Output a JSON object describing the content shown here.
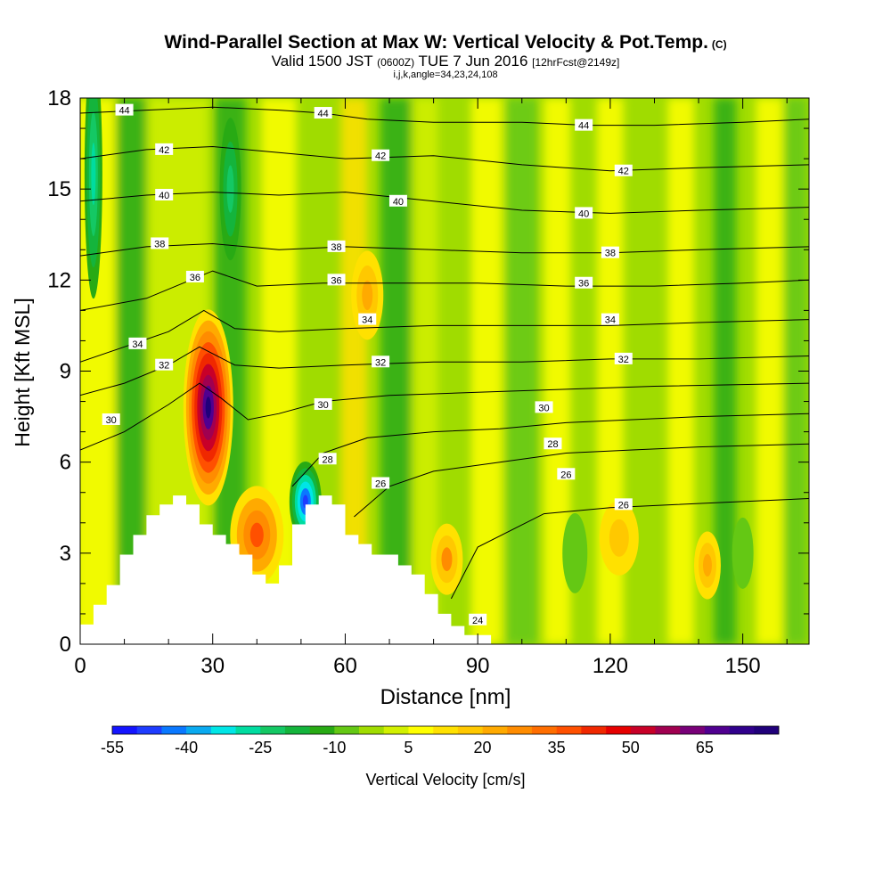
{
  "titles": {
    "title": "Wind-Parallel Section at Max W: Vertical Velocity & Pot.Temp.",
    "title_mark": "(C)",
    "valid_a": "Valid 1500 JST ",
    "valid_b": "(0600Z)",
    "valid_c": " TUE 7 Jun 2016 ",
    "valid_d": "[12hrFcst@2149z]",
    "indices": "i,j,k,angle=34,23,24,108"
  },
  "chart_data": {
    "type": "heatmap",
    "xlabel": "Distance [nm]",
    "ylabel": "Height [Kft MSL]",
    "xlim": [
      0,
      165
    ],
    "ylim": [
      0,
      18
    ],
    "x_ticks": [
      "0",
      "30",
      "60",
      "90",
      "120",
      "150"
    ],
    "y_ticks": [
      "0",
      "3",
      "6",
      "9",
      "12",
      "15",
      "18"
    ],
    "x_tick_values": [
      0,
      30,
      60,
      90,
      120,
      150
    ],
    "y_tick_values": [
      0,
      3,
      6,
      9,
      12,
      15,
      18
    ],
    "colorbar": {
      "label": "Vertical Velocity [cm/s]",
      "min": -55,
      "max": 80,
      "step": 5,
      "tick_labels": [
        "-55",
        "-40",
        "-25",
        "-10",
        "5",
        "20",
        "35",
        "50",
        "65"
      ],
      "tick_values": [
        -55,
        -40,
        -25,
        -10,
        5,
        20,
        35,
        50,
        65
      ],
      "colors": [
        "#1414ff",
        "#1e3cff",
        "#0a78ff",
        "#0aaaf0",
        "#00e6e6",
        "#00dca0",
        "#14c864",
        "#14b43c",
        "#28aa14",
        "#64c814",
        "#a0dc00",
        "#d2f000",
        "#ffff00",
        "#ffe100",
        "#ffc800",
        "#ffaa00",
        "#ff8c00",
        "#ff6e00",
        "#ff5000",
        "#f02800",
        "#e60000",
        "#c80028",
        "#a00050",
        "#780078",
        "#500090",
        "#30008c",
        "#20007a"
      ]
    },
    "terrain": {
      "x": [
        0,
        3,
        3,
        6,
        6,
        9,
        9,
        12,
        12,
        15,
        15,
        18,
        18,
        21,
        21,
        24,
        24,
        27,
        27,
        30,
        30,
        33,
        33,
        36,
        36,
        39,
        39,
        42,
        42,
        45,
        45,
        48,
        48,
        51,
        51,
        54,
        54,
        57,
        57,
        60,
        60,
        63,
        63,
        66,
        66,
        72,
        72,
        75,
        75,
        78,
        78,
        81,
        81,
        84,
        84,
        87,
        87,
        93,
        93,
        165
      ],
      "y": [
        0.65,
        0.65,
        1.3,
        1.3,
        1.95,
        1.95,
        2.95,
        2.95,
        3.6,
        3.6,
        4.25,
        4.25,
        4.6,
        4.6,
        4.9,
        4.9,
        4.6,
        4.6,
        3.95,
        3.95,
        3.6,
        3.6,
        3.3,
        3.3,
        2.95,
        2.95,
        2.3,
        2.3,
        2.0,
        2.0,
        2.6,
        2.6,
        3.95,
        3.95,
        4.6,
        4.6,
        4.9,
        4.9,
        4.6,
        4.6,
        3.6,
        3.6,
        3.3,
        3.3,
        2.95,
        2.95,
        2.6,
        2.6,
        2.3,
        2.3,
        1.65,
        1.65,
        1.0,
        1.0,
        0.6,
        0.6,
        0.3,
        0.3,
        0.0,
        0.0
      ]
    },
    "updraft_cores": [
      {
        "x": 29,
        "y": 7.8,
        "value": 75
      },
      {
        "x": 40,
        "y": 3.6,
        "value": 35
      },
      {
        "x": 65,
        "y": 11.5,
        "value": 20
      },
      {
        "x": 83,
        "y": 2.8,
        "value": 25
      },
      {
        "x": 122,
        "y": 3.5,
        "value": 18
      },
      {
        "x": 142,
        "y": 2.6,
        "value": 22
      }
    ],
    "downdraft_cores": [
      {
        "x": 51,
        "y": 4.7,
        "value": -50
      },
      {
        "x": 3,
        "y": 15.5,
        "value": -30
      },
      {
        "x": 34,
        "y": 15.0,
        "value": -25
      },
      {
        "x": 112,
        "y": 3.0,
        "value": -10
      },
      {
        "x": 150,
        "y": 3.0,
        "value": -10
      }
    ],
    "isentropes": [
      {
        "level": "24",
        "x": [
          84,
          90,
          105,
          120,
          135,
          150,
          165
        ],
        "y": [
          1.5,
          3.2,
          4.3,
          4.5,
          4.6,
          4.7,
          4.8
        ]
      },
      {
        "level": "26",
        "x": [
          62,
          70,
          80,
          95,
          110,
          125,
          140,
          165
        ],
        "y": [
          4.2,
          5.2,
          5.7,
          6.0,
          6.3,
          6.4,
          6.5,
          6.6
        ]
      },
      {
        "level": "28",
        "x": [
          48,
          55,
          65,
          80,
          95,
          110,
          125,
          140,
          165
        ],
        "y": [
          5.2,
          6.3,
          6.8,
          7.0,
          7.1,
          7.3,
          7.4,
          7.5,
          7.6
        ]
      },
      {
        "level": "30",
        "x": [
          0,
          10,
          20,
          27,
          32,
          38,
          45,
          55,
          70,
          90,
          110,
          130,
          165
        ],
        "y": [
          6.4,
          7.0,
          7.9,
          8.6,
          8.1,
          7.4,
          7.6,
          8.0,
          8.2,
          8.3,
          8.4,
          8.5,
          8.6
        ]
      },
      {
        "level": "32",
        "x": [
          0,
          10,
          20,
          27,
          35,
          45,
          60,
          80,
          100,
          120,
          140,
          165
        ],
        "y": [
          8.2,
          8.6,
          9.2,
          9.8,
          9.2,
          9.1,
          9.2,
          9.3,
          9.3,
          9.4,
          9.4,
          9.5
        ]
      },
      {
        "level": "34",
        "x": [
          0,
          10,
          20,
          28,
          35,
          45,
          60,
          80,
          100,
          120,
          140,
          165
        ],
        "y": [
          9.3,
          9.8,
          10.3,
          11.0,
          10.4,
          10.3,
          10.4,
          10.5,
          10.5,
          10.5,
          10.6,
          10.7
        ]
      },
      {
        "level": "36",
        "x": [
          0,
          15,
          25,
          30,
          40,
          55,
          70,
          90,
          110,
          130,
          150,
          165
        ],
        "y": [
          11.0,
          11.4,
          12.0,
          12.3,
          11.8,
          11.9,
          11.9,
          11.9,
          11.8,
          11.8,
          11.9,
          12.0
        ]
      },
      {
        "level": "38",
        "x": [
          0,
          15,
          30,
          45,
          60,
          80,
          100,
          120,
          140,
          165
        ],
        "y": [
          12.8,
          13.1,
          13.2,
          13.0,
          13.1,
          13.0,
          12.9,
          12.9,
          13.0,
          13.1
        ]
      },
      {
        "level": "40",
        "x": [
          0,
          15,
          30,
          45,
          60,
          80,
          100,
          120,
          140,
          165
        ],
        "y": [
          14.6,
          14.8,
          14.9,
          14.8,
          14.9,
          14.6,
          14.3,
          14.2,
          14.3,
          14.4
        ]
      },
      {
        "level": "42",
        "x": [
          0,
          15,
          30,
          45,
          60,
          80,
          100,
          120,
          140,
          165
        ],
        "y": [
          16.0,
          16.3,
          16.4,
          16.2,
          16.0,
          16.1,
          15.8,
          15.6,
          15.7,
          15.8
        ]
      },
      {
        "level": "44",
        "x": [
          0,
          15,
          30,
          45,
          55,
          65,
          80,
          100,
          115,
          130,
          150,
          165
        ],
        "y": [
          17.5,
          17.6,
          17.7,
          17.6,
          17.5,
          17.3,
          17.2,
          17.2,
          17.1,
          17.1,
          17.2,
          17.3
        ]
      }
    ],
    "isentrope_labels": [
      {
        "text": "44",
        "x": 10,
        "y": 17.6
      },
      {
        "text": "44",
        "x": 55,
        "y": 17.5
      },
      {
        "text": "44",
        "x": 114,
        "y": 17.1
      },
      {
        "text": "42",
        "x": 19,
        "y": 16.3
      },
      {
        "text": "42",
        "x": 68,
        "y": 16.1
      },
      {
        "text": "42",
        "x": 123,
        "y": 15.6
      },
      {
        "text": "40",
        "x": 19,
        "y": 14.8
      },
      {
        "text": "40",
        "x": 72,
        "y": 14.6
      },
      {
        "text": "40",
        "x": 114,
        "y": 14.2
      },
      {
        "text": "38",
        "x": 18,
        "y": 13.2
      },
      {
        "text": "38",
        "x": 58,
        "y": 13.1
      },
      {
        "text": "38",
        "x": 120,
        "y": 12.9
      },
      {
        "text": "36",
        "x": 26,
        "y": 12.1
      },
      {
        "text": "36",
        "x": 58,
        "y": 12.0
      },
      {
        "text": "36",
        "x": 114,
        "y": 11.9
      },
      {
        "text": "34",
        "x": 13,
        "y": 9.9
      },
      {
        "text": "34",
        "x": 65,
        "y": 10.7
      },
      {
        "text": "34",
        "x": 120,
        "y": 10.7
      },
      {
        "text": "32",
        "x": 19,
        "y": 9.2
      },
      {
        "text": "32",
        "x": 68,
        "y": 9.3
      },
      {
        "text": "32",
        "x": 123,
        "y": 9.4
      },
      {
        "text": "30",
        "x": 7,
        "y": 7.4
      },
      {
        "text": "30",
        "x": 55,
        "y": 7.9
      },
      {
        "text": "30",
        "x": 105,
        "y": 7.8
      },
      {
        "text": "28",
        "x": 56,
        "y": 6.1
      },
      {
        "text": "28",
        "x": 107,
        "y": 6.6
      },
      {
        "text": "26",
        "x": 68,
        "y": 5.3
      },
      {
        "text": "26",
        "x": 110,
        "y": 5.6
      },
      {
        "text": "26",
        "x": 123,
        "y": 4.6
      },
      {
        "text": "24",
        "x": 90,
        "y": 0.8
      }
    ]
  }
}
